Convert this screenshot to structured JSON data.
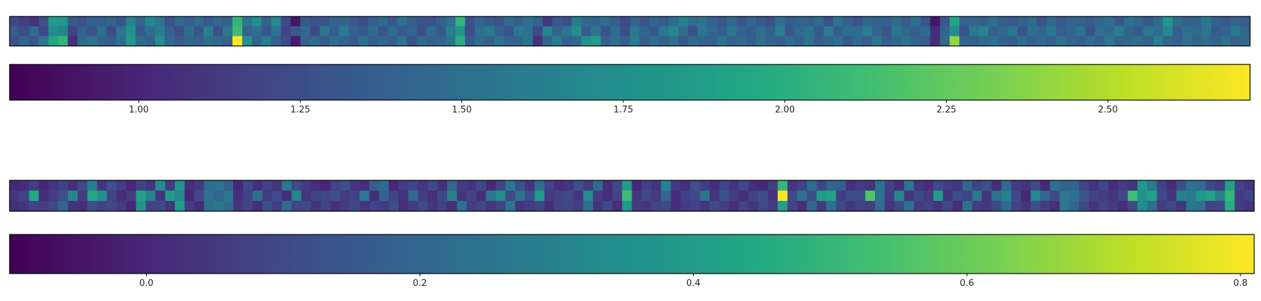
{
  "chart_data": [
    {
      "type": "heatmap",
      "title": "",
      "xlabel": "",
      "ylabel": "",
      "rows": 3,
      "cols": 128,
      "colormap": "viridis",
      "values": [
        [
          1.2,
          1.15,
          1.08,
          1.27,
          1.85,
          1.82,
          1.33,
          1.28,
          1.41,
          1.36,
          1.42,
          1.3,
          1.62,
          1.4,
          1.7,
          1.55,
          1.28,
          1.45,
          1.36,
          1.48,
          1.32,
          1.44,
          1.38,
          2.05,
          1.55,
          1.75,
          1.4,
          1.69,
          1.21,
          0.92,
          1.34,
          1.28,
          1.3,
          1.41,
          1.42,
          1.32,
          1.25,
          1.36,
          1.46,
          1.31,
          1.51,
          1.37,
          1.3,
          1.28,
          1.38,
          1.52,
          2.04,
          1.27,
          1.42,
          1.34,
          1.29,
          1.46,
          1.38,
          1.5,
          1.42,
          1.1,
          1.33,
          1.26,
          1.61,
          1.45,
          1.42,
          1.5,
          1.37,
          1.21,
          1.41,
          1.3,
          1.42,
          1.35,
          1.5,
          1.62,
          1.48,
          1.53,
          1.39,
          1.32,
          1.47,
          1.31,
          1.45,
          1.33,
          1.26,
          1.49,
          1.36,
          1.41,
          1.38,
          1.48,
          1.28,
          1.52,
          1.39,
          1.27,
          1.44,
          1.42,
          1.39,
          1.48,
          1.35,
          1.51,
          1.29,
          0.92,
          1.3,
          1.92,
          1.41,
          1.43,
          1.4,
          1.5,
          1.37,
          1.33,
          1.39,
          1.46,
          1.3,
          1.46,
          1.34,
          1.39,
          1.41,
          1.35,
          1.44,
          1.5,
          1.31,
          1.51,
          1.45,
          1.32,
          1.46,
          1.81,
          1.48,
          1.38,
          1.42,
          1.58,
          1.39,
          1.34,
          1.4,
          1.36
        ],
        [
          1.35,
          1.24,
          1.48,
          1.2,
          1.72,
          1.65,
          1.18,
          1.4,
          1.28,
          1.5,
          1.22,
          1.55,
          1.78,
          1.33,
          1.48,
          1.6,
          1.38,
          1.24,
          1.5,
          1.3,
          1.62,
          1.28,
          1.55,
          2.12,
          1.4,
          1.5,
          1.31,
          1.52,
          1.18,
          1.32,
          1.45,
          1.22,
          1.55,
          1.36,
          1.58,
          1.4,
          1.34,
          1.48,
          1.3,
          1.47,
          1.33,
          1.42,
          1.26,
          1.48,
          1.32,
          1.62,
          1.8,
          1.25,
          1.5,
          1.58,
          1.4,
          1.3,
          1.56,
          1.48,
          1.22,
          1.66,
          1.4,
          1.55,
          1.75,
          1.35,
          1.52,
          1.3,
          1.48,
          1.25,
          1.56,
          1.42,
          1.32,
          1.58,
          1.7,
          1.47,
          1.28,
          1.55,
          1.43,
          1.36,
          1.56,
          1.42,
          1.35,
          1.5,
          1.38,
          1.62,
          1.32,
          1.46,
          1.53,
          1.34,
          1.59,
          1.38,
          1.5,
          1.48,
          1.61,
          1.4,
          1.3,
          1.57,
          1.44,
          1.36,
          1.48,
          1.05,
          1.42,
          1.72,
          1.3,
          1.57,
          1.66,
          1.38,
          1.45,
          1.55,
          1.31,
          1.5,
          1.44,
          1.58,
          1.36,
          1.42,
          1.55,
          1.3,
          1.48,
          1.45,
          1.6,
          1.42,
          1.35,
          1.56,
          1.48,
          1.7,
          1.38,
          1.5,
          1.45,
          1.55,
          1.33,
          1.4,
          1.58,
          1.44
        ],
        [
          1.28,
          1.42,
          1.32,
          1.55,
          1.92,
          2.05,
          1.05,
          1.45,
          1.52,
          1.4,
          1.36,
          1.48,
          1.82,
          1.47,
          1.4,
          1.72,
          1.45,
          1.35,
          1.44,
          1.38,
          1.5,
          1.46,
          1.4,
          2.72,
          1.75,
          1.42,
          1.62,
          1.38,
          1.25,
          0.95,
          1.38,
          1.46,
          1.35,
          1.5,
          1.42,
          1.33,
          1.51,
          1.37,
          1.44,
          1.36,
          1.52,
          1.3,
          1.46,
          1.38,
          1.42,
          1.55,
          2.0,
          1.33,
          1.48,
          1.37,
          1.52,
          1.42,
          1.4,
          1.55,
          1.08,
          1.42,
          1.6,
          1.4,
          1.45,
          1.78,
          1.85,
          1.4,
          1.5,
          1.38,
          1.6,
          1.36,
          1.49,
          1.41,
          1.52,
          1.34,
          1.46,
          1.4,
          1.38,
          1.54,
          1.4,
          1.46,
          1.38,
          1.5,
          1.42,
          1.36,
          1.48,
          1.4,
          1.53,
          1.37,
          1.44,
          1.5,
          1.33,
          1.46,
          1.4,
          1.55,
          1.38,
          1.44,
          1.52,
          1.4,
          1.36,
          1.05,
          1.45,
          2.4,
          1.44,
          1.38,
          1.46,
          1.52,
          1.42,
          1.36,
          1.5,
          1.4,
          1.46,
          1.38,
          1.52,
          1.43,
          1.37,
          1.48,
          1.41,
          1.55,
          1.39,
          1.45,
          1.5,
          1.4,
          1.62,
          1.44,
          1.38,
          1.5,
          1.42,
          1.47,
          1.4,
          1.52,
          1.38,
          1.45
        ]
      ],
      "colorbar": {
        "min": 0.8,
        "max": 2.72,
        "ticks": [
          1.0,
          1.25,
          1.5,
          1.75,
          2.0,
          2.25,
          2.5
        ],
        "tick_labels": [
          "1.00",
          "1.25",
          "1.50",
          "1.75",
          "2.00",
          "2.25",
          "2.50"
        ],
        "orientation": "horizontal"
      }
    },
    {
      "type": "heatmap",
      "title": "",
      "xlabel": "",
      "ylabel": "",
      "rows": 3,
      "cols": 128,
      "colormap": "viridis",
      "values": [
        [
          0.0,
          0.02,
          0.06,
          0.0,
          0.04,
          0.08,
          0.02,
          0.1,
          0.28,
          0.04,
          0.12,
          0.06,
          0.0,
          0.08,
          0.04,
          0.34,
          0.06,
          0.36,
          0.02,
          0.06,
          0.22,
          0.24,
          0.18,
          0.0,
          0.1,
          0.02,
          0.08,
          0.04,
          0.26,
          0.1,
          0.06,
          0.02,
          0.0,
          0.08,
          0.12,
          0.04,
          0.02,
          0.18,
          0.22,
          0.0,
          0.06,
          0.08,
          0.04,
          0.1,
          0.02,
          0.2,
          0.06,
          0.04,
          0.1,
          0.0,
          0.08,
          0.26,
          0.12,
          0.04,
          0.22,
          0.08,
          0.02,
          0.04,
          0.12,
          0.06,
          0.22,
          0.02,
          0.1,
          0.4,
          0.0,
          0.08,
          0.04,
          0.3,
          0.06,
          0.02,
          0.12,
          0.06,
          0.02,
          0.08,
          0.04,
          0.1,
          0.02,
          0.0,
          0.06,
          0.5,
          0.04,
          0.08,
          0.22,
          0.1,
          0.2,
          0.18,
          0.02,
          0.06,
          0.04,
          0.24,
          0.08,
          0.02,
          0.26,
          0.04,
          0.02,
          0.1,
          0.06,
          0.04,
          0.2,
          0.08,
          0.12,
          0.02,
          0.22,
          0.06,
          0.04,
          0.1,
          0.0,
          0.24,
          0.18,
          0.2,
          0.08,
          0.04,
          0.1,
          0.02,
          0.06,
          0.04,
          0.38,
          0.26,
          0.08,
          0.02,
          0.12,
          0.24,
          0.22,
          0.1,
          0.06,
          0.42,
          0.08,
          0.04
        ],
        [
          0.04,
          0.08,
          0.45,
          0.02,
          0.06,
          0.12,
          0.32,
          0.06,
          0.44,
          0.36,
          0.08,
          0.02,
          0.06,
          0.42,
          0.3,
          0.04,
          0.4,
          0.32,
          0.0,
          0.1,
          0.24,
          0.2,
          0.26,
          0.02,
          0.08,
          0.24,
          0.06,
          0.1,
          0.02,
          0.32,
          0.04,
          0.08,
          0.1,
          0.12,
          0.06,
          0.08,
          0.28,
          0.02,
          0.18,
          0.08,
          0.04,
          0.22,
          0.06,
          0.02,
          0.1,
          0.3,
          0.04,
          0.08,
          0.02,
          0.26,
          0.34,
          0.1,
          0.24,
          0.12,
          0.4,
          0.06,
          0.08,
          0.1,
          0.04,
          0.34,
          0.06,
          0.02,
          0.08,
          0.52,
          0.04,
          0.1,
          0.06,
          0.2,
          0.02,
          0.08,
          0.1,
          0.24,
          0.04,
          0.12,
          0.06,
          0.02,
          0.08,
          0.12,
          0.04,
          0.81,
          0.1,
          0.24,
          0.12,
          0.4,
          0.42,
          0.06,
          0.12,
          0.1,
          0.56,
          0.24,
          0.06,
          0.32,
          0.04,
          0.1,
          0.06,
          0.4,
          0.04,
          0.12,
          0.08,
          0.26,
          0.04,
          0.24,
          0.3,
          0.1,
          0.0,
          0.32,
          0.2,
          0.1,
          0.26,
          0.24,
          0.14,
          0.08,
          0.06,
          0.04,
          0.1,
          0.52,
          0.36,
          0.42,
          0.1,
          0.04,
          0.3,
          0.28,
          0.38,
          0.42,
          0.3,
          0.5,
          0.06,
          0.08
        ],
        [
          0.02,
          0.04,
          0.08,
          0.06,
          0.1,
          0.2,
          0.04,
          0.02,
          0.12,
          0.08,
          0.1,
          0.06,
          0.0,
          0.38,
          0.08,
          0.1,
          0.04,
          0.4,
          0.06,
          0.02,
          0.24,
          0.26,
          0.22,
          0.04,
          0.08,
          0.02,
          0.12,
          0.06,
          0.22,
          0.08,
          0.1,
          0.04,
          0.08,
          0.02,
          0.06,
          0.1,
          0.04,
          0.08,
          0.06,
          0.12,
          0.02,
          0.06,
          0.1,
          0.04,
          0.08,
          0.02,
          0.24,
          0.06,
          0.1,
          0.04,
          0.08,
          0.26,
          0.04,
          0.06,
          0.1,
          0.02,
          0.08,
          0.1,
          0.06,
          0.24,
          0.04,
          0.1,
          0.02,
          0.38,
          0.06,
          0.04,
          0.08,
          0.1,
          0.02,
          0.06,
          0.08,
          0.04,
          0.1,
          0.06,
          0.02,
          0.08,
          0.04,
          0.1,
          0.06,
          0.42,
          0.08,
          0.02,
          0.2,
          0.06,
          0.24,
          0.1,
          0.04,
          0.08,
          0.06,
          0.22,
          0.04,
          0.1,
          0.24,
          0.06,
          0.08,
          0.04,
          0.1,
          0.02,
          0.24,
          0.06,
          0.04,
          0.1,
          0.22,
          0.08,
          0.04,
          0.12,
          0.06,
          0.02,
          0.26,
          0.2,
          0.1,
          0.04,
          0.08,
          0.06,
          0.02,
          0.1,
          0.34,
          0.24,
          0.06,
          0.1,
          0.04,
          0.26,
          0.24,
          0.08,
          0.1,
          0.46,
          0.06,
          0.04
        ]
      ],
      "colorbar": {
        "min": -0.1,
        "max": 0.81,
        "ticks": [
          0.0,
          0.2,
          0.4,
          0.6,
          0.8
        ],
        "tick_labels": [
          "0.0",
          "0.2",
          "0.4",
          "0.6",
          "0.8"
        ],
        "orientation": "horizontal"
      }
    }
  ]
}
